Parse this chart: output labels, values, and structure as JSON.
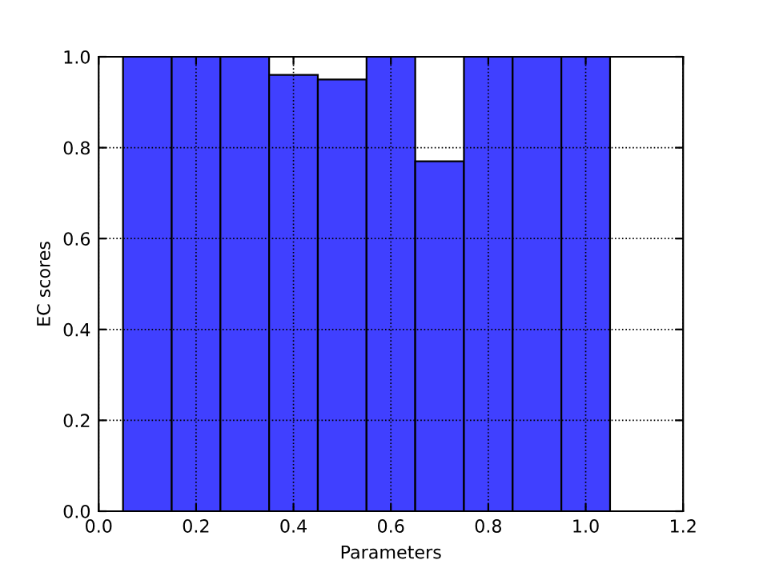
{
  "chart_data": {
    "type": "bar",
    "xlabel": "Parameters",
    "ylabel": "EC scores",
    "x": [
      0.1,
      0.2,
      0.3,
      0.4,
      0.5,
      0.6,
      0.7,
      0.8,
      0.9,
      1.0
    ],
    "values": [
      1.0,
      1.0,
      1.0,
      0.96,
      0.95,
      1.0,
      0.77,
      1.0,
      1.0,
      1.0
    ],
    "color": "#4040ff",
    "xlim": [
      0.0,
      1.2
    ],
    "xticks": [
      {
        "value": 0.0,
        "label": "0.0"
      },
      0.2,
      0.4,
      0.6,
      0.8,
      {
        "value": 1.0,
        "label": "1.0"
      },
      1.2
    ],
    "ylim": [
      0.0,
      1.0
    ],
    "yticks": [
      {
        "value": 0.0,
        "label": "0.0"
      },
      0.2,
      0.4,
      0.6,
      0.8,
      {
        "value": 1.0,
        "label": "1.0"
      }
    ],
    "grid": true
  }
}
